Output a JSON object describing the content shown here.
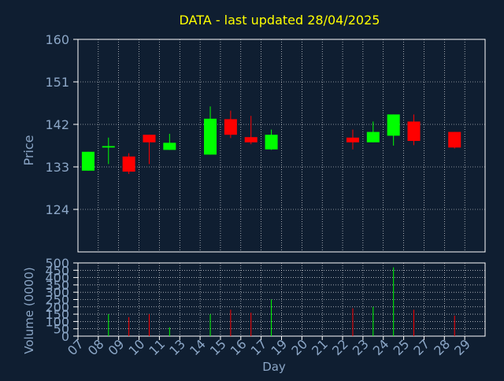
{
  "title": "DATA - last updated 28/04/2025",
  "colors": {
    "background": "#0f1e31",
    "title": "#ffff00",
    "axis_text": "#8ba6c6",
    "frame": "#ffffff",
    "grid": "#ffffff",
    "up": "#00ff00",
    "down": "#ff0000"
  },
  "chart_data": [
    {
      "type": "candlestick",
      "ylabel": "Price",
      "ylim": [
        115,
        160
      ],
      "yticks": [
        160,
        151,
        142,
        133,
        124
      ],
      "grid": true,
      "x_days": [
        "07",
        "08",
        "09",
        "10",
        "11",
        "13",
        "14",
        "15",
        "16",
        "17",
        "19",
        "20",
        "21",
        "22",
        "23",
        "24",
        "25",
        "27",
        "28",
        "29"
      ],
      "candles": [
        {
          "day": "07",
          "open": 132.2,
          "high": 136.2,
          "low": 132.2,
          "close": 136.2
        },
        {
          "day": "08",
          "open": 137.1,
          "high": 139.2,
          "low": 133.6,
          "close": 137.4
        },
        {
          "day": "09",
          "open": 135.2,
          "high": 135.9,
          "low": 131.5,
          "close": 132.0
        },
        {
          "day": "10",
          "open": 139.8,
          "high": 139.8,
          "low": 133.6,
          "close": 138.2
        },
        {
          "day": "11",
          "open": 136.6,
          "high": 140.0,
          "low": 136.6,
          "close": 138.1
        },
        {
          "day": "14",
          "open": 135.6,
          "high": 145.8,
          "low": 135.6,
          "close": 143.2
        },
        {
          "day": "15",
          "open": 143.1,
          "high": 144.9,
          "low": 139.1,
          "close": 139.8
        },
        {
          "day": "16",
          "open": 139.3,
          "high": 143.8,
          "low": 137.8,
          "close": 138.2
        },
        {
          "day": "17",
          "open": 136.7,
          "high": 140.9,
          "low": 136.6,
          "close": 139.8
        },
        {
          "day": "22",
          "open": 139.2,
          "high": 140.9,
          "low": 136.7,
          "close": 138.2
        },
        {
          "day": "23",
          "open": 138.2,
          "high": 142.6,
          "low": 138.2,
          "close": 140.4
        },
        {
          "day": "24",
          "open": 139.6,
          "high": 144.1,
          "low": 137.5,
          "close": 144.1
        },
        {
          "day": "25",
          "open": 142.6,
          "high": 144.1,
          "low": 137.6,
          "close": 138.5
        },
        {
          "day": "28",
          "open": 140.4,
          "high": 140.4,
          "low": 136.9,
          "close": 137.1
        }
      ]
    },
    {
      "type": "bar",
      "xlabel": "Day",
      "ylabel": "Volume (0000)",
      "ylim": [
        0,
        500
      ],
      "yticks": [
        0,
        50,
        100,
        150,
        200,
        250,
        300,
        350,
        400,
        450,
        500
      ],
      "grid": true,
      "bars": [
        {
          "day": "08",
          "value": 150,
          "dir": "up"
        },
        {
          "day": "09",
          "value": 130,
          "dir": "down"
        },
        {
          "day": "10",
          "value": 150,
          "dir": "down"
        },
        {
          "day": "11",
          "value": 60,
          "dir": "up"
        },
        {
          "day": "14",
          "value": 150,
          "dir": "up"
        },
        {
          "day": "15",
          "value": 180,
          "dir": "down"
        },
        {
          "day": "16",
          "value": 160,
          "dir": "down"
        },
        {
          "day": "17",
          "value": 250,
          "dir": "up"
        },
        {
          "day": "22",
          "value": 190,
          "dir": "down"
        },
        {
          "day": "23",
          "value": 200,
          "dir": "up"
        },
        {
          "day": "24",
          "value": 470,
          "dir": "up"
        },
        {
          "day": "25",
          "value": 180,
          "dir": "down"
        },
        {
          "day": "28",
          "value": 140,
          "dir": "down"
        }
      ]
    }
  ]
}
